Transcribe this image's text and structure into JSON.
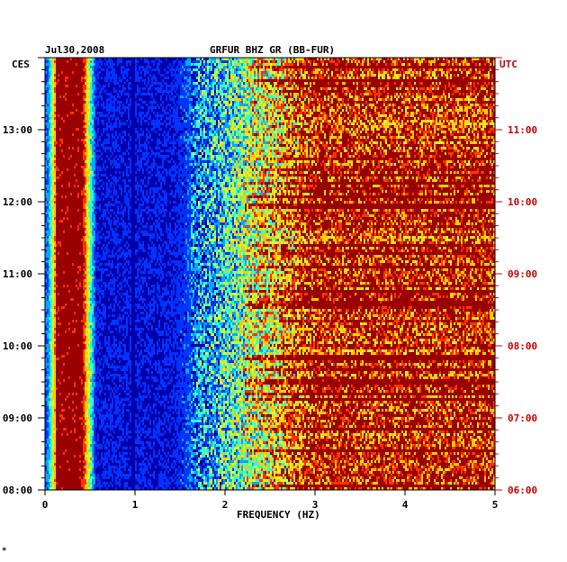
{
  "header": {
    "date": "Jul30,2008",
    "station": "GRFUR BHZ GR (BB-FUR)",
    "left_tz": "CES",
    "right_tz": "UTC"
  },
  "chart_data": {
    "type": "heatmap",
    "title": "GRFUR BHZ GR (BB-FUR)",
    "xlabel": "FREQUENCY (HZ)",
    "ylabel_left": "CES",
    "ylabel_right": "UTC",
    "xlim": [
      0,
      5
    ],
    "x_ticks": [
      "0",
      "1",
      "2",
      "3",
      "4",
      "5"
    ],
    "y_left_ticks": [
      "08:00",
      "09:00",
      "10:00",
      "11:00",
      "12:00",
      "13:00"
    ],
    "y_right_ticks": [
      "06:00",
      "07:00",
      "08:00",
      "09:00",
      "10:00",
      "11:00"
    ],
    "colormap": [
      "#0000aa",
      "#0033ff",
      "#00aaff",
      "#33ffcc",
      "#ccff33",
      "#ffcc00",
      "#ff3300",
      "#990000"
    ],
    "axis_color": "#000000",
    "right_axis_color": "#d00000"
  },
  "footer": {
    "mark": "*"
  }
}
